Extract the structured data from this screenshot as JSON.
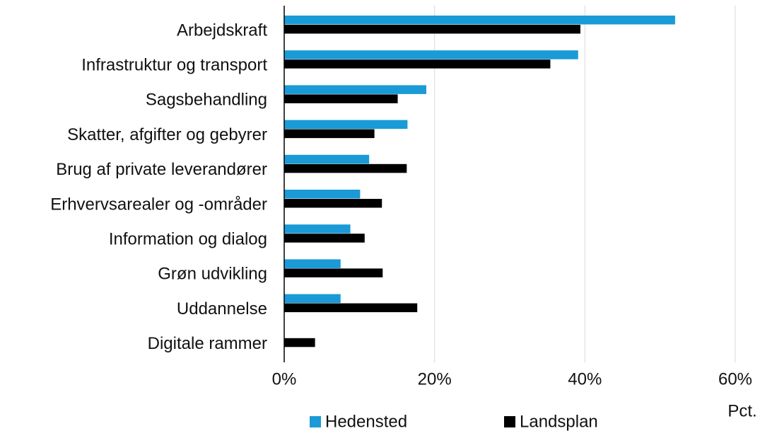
{
  "chart_data": {
    "type": "hbar",
    "categories": [
      "Arbejdskraft",
      "Infrastruktur og transport",
      "Sagsbehandling",
      "Skatter, afgifter og gebyrer",
      "Brug af private leverandører",
      "Erhvervsarealer og -områder",
      "Information og dialog",
      "Grøn udvikling",
      "Uddannelse",
      "Digitale rammer"
    ],
    "series": [
      {
        "name": "Hedensted",
        "color": "#1a9ad6",
        "values": [
          52,
          39.1,
          18.9,
          16.4,
          11.3,
          10.1,
          8.8,
          7.5,
          7.5,
          0
        ]
      },
      {
        "name": "Landsplan",
        "color": "#000000",
        "values": [
          39.4,
          35.4,
          15.1,
          12.0,
          16.3,
          13.0,
          10.7,
          13.1,
          17.7,
          4.1
        ]
      }
    ],
    "xlim": [
      0,
      60
    ],
    "xticks": [
      {
        "value": 0,
        "label": "0%"
      },
      {
        "value": 20,
        "label": "20%"
      },
      {
        "value": 40,
        "label": "40%"
      },
      {
        "value": 60,
        "label": "60%"
      }
    ],
    "xlabel": "Pct.",
    "grid": true,
    "legend": "bottom"
  }
}
